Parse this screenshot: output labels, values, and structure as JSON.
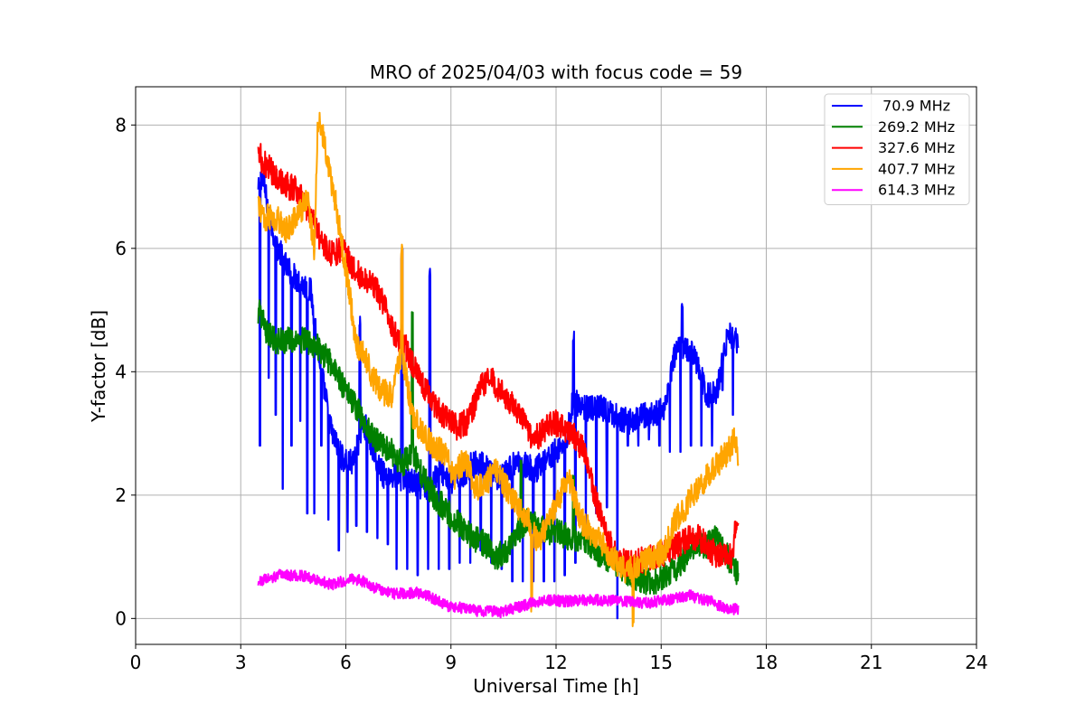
{
  "chart_data": {
    "type": "line",
    "title": "MRO of 2025/04/03 with focus code = 59",
    "xlabel": "Universal Time [h]",
    "ylabel": "Y-factor [dB]",
    "xlim": [
      0,
      24
    ],
    "ylim": [
      -0.42,
      8.62
    ],
    "xticks": [
      0,
      3,
      6,
      9,
      12,
      15,
      18,
      21,
      24
    ],
    "yticks": [
      0,
      2,
      4,
      6,
      8
    ],
    "grid": true,
    "legend_position": "top-right",
    "series": [
      {
        "name": " 70.9 MHz",
        "color": "#0000ff",
        "x": [
          3.5,
          3.6,
          3.8,
          4.0,
          4.3,
          4.6,
          5.0,
          5.3,
          5.6,
          5.9,
          6.2,
          6.5,
          6.8,
          7.1,
          7.5,
          7.9,
          8.3,
          8.7,
          9.0,
          9.3,
          9.6,
          9.9,
          10.2,
          10.5,
          10.8,
          11.1,
          11.4,
          11.7,
          12.0,
          12.3,
          12.5,
          12.7,
          13.0,
          13.3,
          13.6,
          13.9,
          14.2,
          14.5,
          14.8,
          15.1,
          15.4,
          15.7,
          16.0,
          16.3,
          16.6,
          16.9,
          17.2
        ],
        "values": [
          6.9,
          7.2,
          6.6,
          6.1,
          5.7,
          5.5,
          5.3,
          4.0,
          3.0,
          2.6,
          2.5,
          3.2,
          2.7,
          2.3,
          2.3,
          2.2,
          2.1,
          2.4,
          2.2,
          2.3,
          2.5,
          2.5,
          2.3,
          2.3,
          2.5,
          2.5,
          2.4,
          2.6,
          2.7,
          2.9,
          3.6,
          3.4,
          3.4,
          3.4,
          3.3,
          3.2,
          3.2,
          3.3,
          3.3,
          3.4,
          4.3,
          4.4,
          4.2,
          3.6,
          3.7,
          4.6,
          4.5
        ],
        "dips": [
          [
            3.55,
            2.8
          ],
          [
            3.8,
            3.9
          ],
          [
            4.0,
            3.3
          ],
          [
            4.2,
            2.1
          ],
          [
            4.45,
            2.8
          ],
          [
            4.7,
            3.2
          ],
          [
            4.9,
            1.7
          ],
          [
            5.1,
            1.7
          ],
          [
            5.3,
            2.8
          ],
          [
            5.5,
            1.6
          ],
          [
            5.8,
            1.1
          ],
          [
            6.05,
            1.4
          ],
          [
            6.3,
            1.5
          ],
          [
            6.6,
            1.4
          ],
          [
            6.9,
            1.3
          ],
          [
            7.2,
            1.2
          ],
          [
            7.45,
            0.8
          ],
          [
            7.75,
            0.8
          ],
          [
            8.05,
            0.7
          ],
          [
            8.35,
            0.8
          ],
          [
            8.65,
            0.8
          ],
          [
            8.95,
            0.8
          ],
          [
            9.25,
            0.9
          ],
          [
            9.55,
            0.9
          ],
          [
            9.85,
            1.1
          ],
          [
            10.15,
            0.9
          ],
          [
            10.45,
            0.8
          ],
          [
            10.75,
            0.6
          ],
          [
            11.05,
            0.6
          ],
          [
            11.35,
            0.6
          ],
          [
            11.65,
            0.6
          ],
          [
            11.95,
            0.6
          ],
          [
            12.25,
            0.7
          ],
          [
            12.55,
            0.9
          ],
          [
            12.85,
            1.5
          ],
          [
            13.15,
            1.7
          ],
          [
            13.45,
            1.8
          ],
          [
            13.75,
            0.0
          ],
          [
            14.05,
            2.8
          ],
          [
            14.35,
            2.8
          ],
          [
            14.65,
            2.9
          ],
          [
            14.95,
            2.8
          ],
          [
            15.25,
            2.7
          ],
          [
            15.55,
            2.7
          ],
          [
            15.85,
            2.8
          ],
          [
            16.15,
            2.8
          ],
          [
            16.45,
            2.8
          ],
          [
            16.75,
            3.7
          ],
          [
            17.05,
            3.3
          ]
        ],
        "spikes": [
          [
            6.4,
            4.9
          ],
          [
            7.6,
            6.0
          ],
          [
            8.4,
            5.7
          ],
          [
            12.5,
            4.7
          ],
          [
            15.6,
            5.2
          ]
        ]
      },
      {
        "name": "269.2 MHz",
        "color": "#008000",
        "x": [
          3.5,
          3.7,
          4.0,
          4.3,
          4.6,
          4.9,
          5.2,
          5.5,
          5.8,
          6.1,
          6.4,
          6.7,
          7.0,
          7.3,
          7.6,
          7.9,
          8.2,
          8.5,
          8.8,
          9.1,
          9.4,
          9.7,
          10.0,
          10.3,
          10.6,
          10.9,
          11.2,
          11.5,
          11.8,
          12.1,
          12.4,
          12.7,
          13.0,
          13.3,
          13.6,
          13.9,
          14.2,
          14.5,
          14.8,
          15.1,
          15.4,
          15.7,
          16.0,
          16.3,
          16.6,
          16.9,
          17.2
        ],
        "values": [
          5.0,
          4.7,
          4.5,
          4.5,
          4.5,
          4.5,
          4.4,
          4.2,
          3.9,
          3.6,
          3.3,
          3.0,
          2.8,
          2.7,
          2.5,
          2.7,
          2.3,
          2.0,
          1.8,
          1.6,
          1.4,
          1.3,
          1.2,
          1.0,
          1.1,
          1.4,
          1.6,
          1.5,
          1.4,
          1.4,
          1.3,
          1.3,
          1.2,
          1.0,
          0.9,
          0.8,
          0.7,
          0.6,
          0.6,
          0.7,
          0.8,
          1.0,
          1.2,
          1.2,
          1.3,
          1.0,
          0.7
        ],
        "spikes": [
          [
            7.9,
            5.0
          ],
          [
            11.0,
            2.6
          ],
          [
            12.5,
            2.4
          ]
        ]
      },
      {
        "name": "327.6 MHz",
        "color": "#ff0000",
        "x": [
          3.5,
          3.6,
          3.8,
          4.1,
          4.4,
          4.7,
          5.0,
          5.3,
          5.6,
          5.9,
          6.2,
          6.5,
          6.8,
          7.1,
          7.4,
          7.7,
          8.0,
          8.3,
          8.6,
          8.9,
          9.2,
          9.5,
          9.8,
          10.1,
          10.4,
          10.7,
          11.0,
          11.3,
          11.6,
          11.9,
          12.2,
          12.5,
          12.8,
          13.1,
          13.4,
          13.7,
          14.0,
          14.3,
          14.6,
          14.9,
          15.2,
          15.5,
          15.8,
          16.1,
          16.4,
          16.7,
          17.0,
          17.2
        ],
        "values": [
          7.7,
          7.4,
          7.3,
          7.1,
          7.0,
          6.9,
          6.5,
          6.1,
          5.9,
          6.0,
          5.7,
          5.5,
          5.4,
          5.1,
          4.6,
          4.4,
          4.0,
          3.7,
          3.4,
          3.2,
          3.1,
          3.2,
          3.7,
          3.9,
          3.7,
          3.5,
          3.3,
          2.9,
          3.0,
          3.2,
          3.1,
          3.0,
          2.7,
          2.0,
          1.4,
          1.0,
          0.9,
          0.9,
          1.0,
          1.0,
          1.1,
          1.2,
          1.3,
          1.3,
          1.1,
          1.0,
          1.0,
          1.7
        ]
      },
      {
        "name": "407.7 MHz",
        "color": "#ffa500",
        "x": [
          3.5,
          3.7,
          4.0,
          4.3,
          4.6,
          4.9,
          5.1,
          5.2,
          5.3,
          5.5,
          5.7,
          5.9,
          6.1,
          6.3,
          6.5,
          6.7,
          7.0,
          7.3,
          7.6,
          7.9,
          8.2,
          8.5,
          8.8,
          9.1,
          9.4,
          9.7,
          10.0,
          10.3,
          10.6,
          10.9,
          11.2,
          11.5,
          11.8,
          12.1,
          12.4,
          12.7,
          13.0,
          13.3,
          13.6,
          13.9,
          14.2,
          14.5,
          14.8,
          15.1,
          15.4,
          15.7,
          16.0,
          16.3,
          16.6,
          16.9,
          17.1,
          17.2
        ],
        "values": [
          6.7,
          6.5,
          6.5,
          6.3,
          6.5,
          6.8,
          6.0,
          8.1,
          8.0,
          7.3,
          6.8,
          6.0,
          5.3,
          4.4,
          4.3,
          4.0,
          3.7,
          3.6,
          4.3,
          3.3,
          3.0,
          2.8,
          2.7,
          2.3,
          2.6,
          2.1,
          2.2,
          2.4,
          2.1,
          1.8,
          1.6,
          1.2,
          1.6,
          2.0,
          2.2,
          1.6,
          1.4,
          1.2,
          1.0,
          0.8,
          0.8,
          0.9,
          1.0,
          1.1,
          1.6,
          1.8,
          2.1,
          2.3,
          2.5,
          2.7,
          2.9,
          2.6
        ],
        "spikes": [
          [
            7.6,
            6.1
          ],
          [
            11.3,
            0.3
          ],
          [
            14.2,
            0.0
          ]
        ]
      },
      {
        "name": "614.3 MHz",
        "color": "#ff00ff",
        "x": [
          3.5,
          3.8,
          4.1,
          4.4,
          4.7,
          5.0,
          5.3,
          5.6,
          5.9,
          6.2,
          6.5,
          6.8,
          7.1,
          7.4,
          7.7,
          8.0,
          8.3,
          8.6,
          8.9,
          9.2,
          9.5,
          9.8,
          10.1,
          10.4,
          10.7,
          11.0,
          11.3,
          11.6,
          11.9,
          12.2,
          12.5,
          12.8,
          13.1,
          13.4,
          13.7,
          14.0,
          14.3,
          14.6,
          14.9,
          15.2,
          15.5,
          15.8,
          16.1,
          16.4,
          16.7,
          17.0,
          17.2
        ],
        "values": [
          0.6,
          0.65,
          0.7,
          0.7,
          0.7,
          0.65,
          0.6,
          0.55,
          0.6,
          0.65,
          0.6,
          0.5,
          0.45,
          0.4,
          0.4,
          0.42,
          0.38,
          0.3,
          0.2,
          0.18,
          0.15,
          0.12,
          0.12,
          0.1,
          0.15,
          0.2,
          0.25,
          0.28,
          0.3,
          0.28,
          0.28,
          0.3,
          0.3,
          0.28,
          0.3,
          0.28,
          0.25,
          0.25,
          0.28,
          0.3,
          0.35,
          0.38,
          0.32,
          0.28,
          0.2,
          0.15,
          0.15
        ]
      }
    ]
  }
}
